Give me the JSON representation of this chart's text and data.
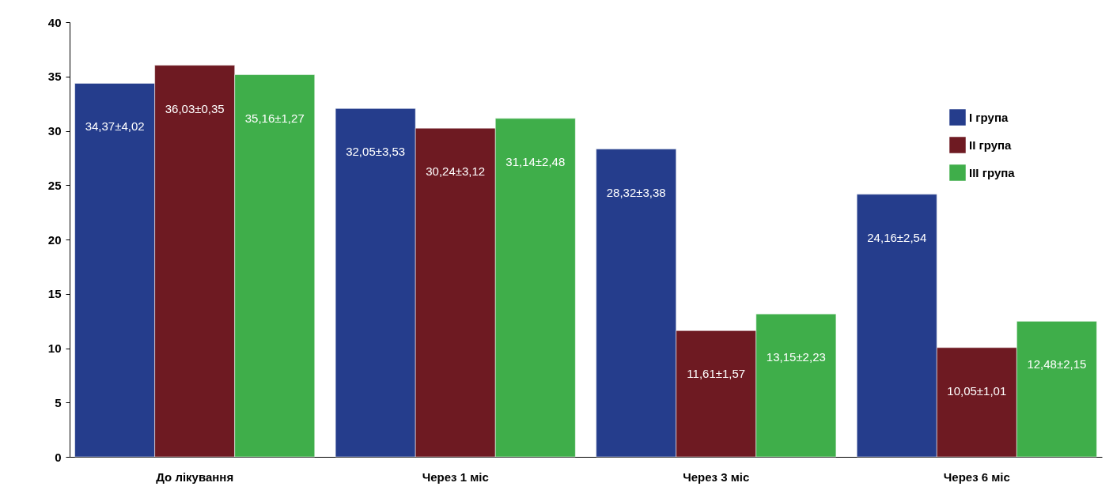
{
  "chart_data": {
    "type": "bar",
    "categories": [
      "До лікування",
      "Через 1 міс",
      "Через 3 міс",
      "Через 6 міс"
    ],
    "series": [
      {
        "name": "I група",
        "color": "#253d8c",
        "values": [
          34.37,
          32.05,
          28.32,
          24.16
        ],
        "value_labels": [
          "34,37±4,02",
          "32,05±3,53",
          "28,32±3,38",
          "24,16±2,54"
        ]
      },
      {
        "name": "II група",
        "color": "#6e1a22",
        "values": [
          36.03,
          30.24,
          11.61,
          10.05
        ],
        "value_labels": [
          "36,03±0,35",
          "30,24±3,12",
          "11,61±1,57",
          "10,05±1,01"
        ]
      },
      {
        "name": "III група",
        "color": "#3fae4a",
        "values": [
          35.16,
          31.14,
          13.15,
          12.48
        ],
        "value_labels": [
          "35,16±1,27",
          "31,14±2,48",
          "13,15±2,23",
          "12,48±2,15"
        ]
      }
    ],
    "ylim": [
      0,
      40
    ],
    "yticks": [
      0,
      5,
      10,
      15,
      20,
      25,
      30,
      35,
      40
    ],
    "grid": false,
    "legend": "top right"
  }
}
